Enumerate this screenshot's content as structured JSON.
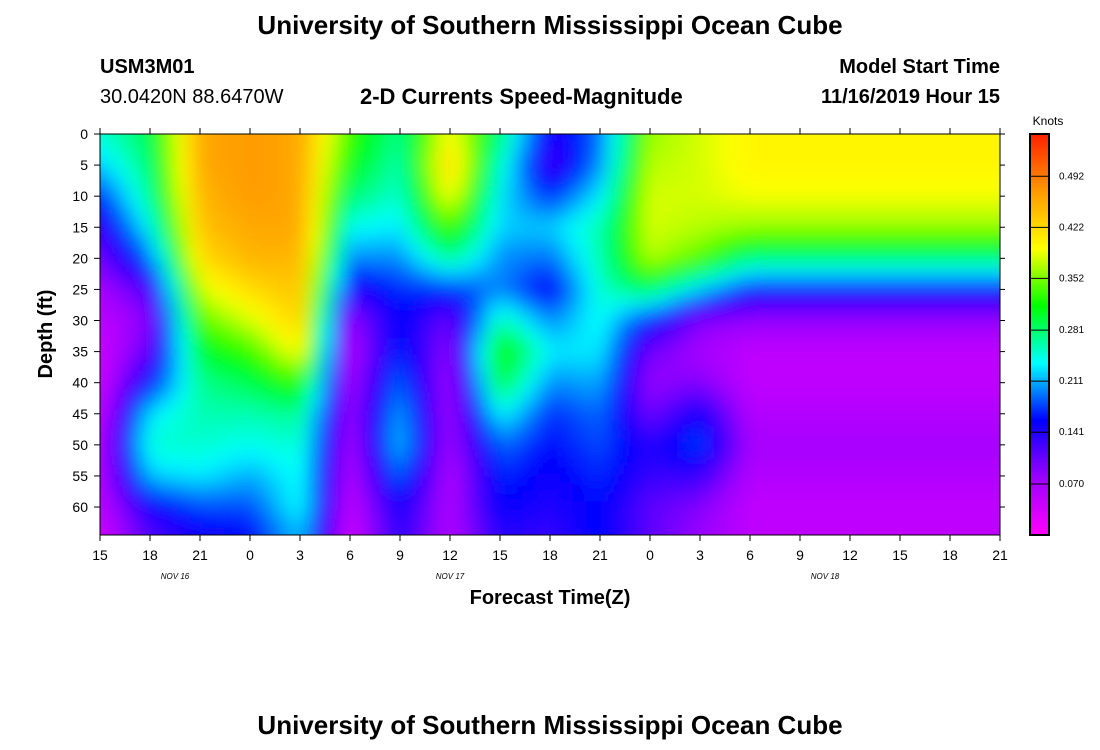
{
  "header": {
    "title": "University of Southern Mississippi Ocean Cube",
    "station_id": "USM3M01",
    "coordinates": "30.0420N 88.6470W",
    "chart_title": "2-D Currents Speed-Magnitude",
    "model_start_label": "Model Start Time",
    "model_start_value": "11/16/2019 Hour 15"
  },
  "footer": {
    "title": "University of Southern Mississippi Ocean Cube"
  },
  "chart_data": {
    "type": "heatmap",
    "title": "2-D Currents Speed-Magnitude",
    "xlabel": "Forecast Time(Z)",
    "ylabel": "Depth (ft)",
    "x_tick_labels": [
      "15",
      "18",
      "21",
      "0",
      "3",
      "6",
      "9",
      "12",
      "15",
      "18",
      "21",
      "0",
      "3",
      "6",
      "9",
      "12",
      "15",
      "18",
      "21"
    ],
    "x_range_hours": [
      0,
      54
    ],
    "x_tick_step_hours": 3,
    "date_labels": [
      {
        "text": "NOV 16",
        "hour": 4.5
      },
      {
        "text": "NOV 17",
        "hour": 21
      },
      {
        "text": "NOV 18",
        "hour": 43.5
      }
    ],
    "y_tick_labels": [
      "0",
      "5",
      "10",
      "15",
      "20",
      "25",
      "30",
      "35",
      "40",
      "45",
      "50",
      "55",
      "60"
    ],
    "y_ticks": [
      0,
      5,
      10,
      15,
      20,
      25,
      30,
      35,
      40,
      45,
      50,
      55,
      60
    ],
    "y_range": [
      0,
      64.5
    ],
    "y_inverted": true,
    "colorbar": {
      "label": "Knots",
      "tick_labels": [
        "0.492",
        "0.422",
        "0.352",
        "0.281",
        "0.211",
        "0.141",
        "0.070"
      ],
      "ticks": [
        0.492,
        0.422,
        0.352,
        0.281,
        0.211,
        0.141,
        0.07
      ],
      "range": [
        0.0,
        0.55
      ],
      "colors": [
        "#ff00ff",
        "#9b00ff",
        "#0000ff",
        "#00ffff",
        "#00ff00",
        "#ffff00",
        "#ff9900",
        "#ff2000"
      ]
    },
    "depth_profile": [
      0,
      5,
      10,
      15,
      20,
      25,
      30,
      35,
      40,
      45,
      50,
      55,
      60,
      64
    ],
    "speed_grid": [
      {
        "hour": 0,
        "values": [
          0.25,
          0.22,
          0.17,
          0.13,
          0.1,
          0.07,
          0.05,
          0.04,
          0.04,
          0.05,
          0.06,
          0.06,
          0.05,
          0.04
        ]
      },
      {
        "hour": 3,
        "values": [
          0.29,
          0.28,
          0.27,
          0.24,
          0.19,
          0.12,
          0.09,
          0.11,
          0.16,
          0.23,
          0.25,
          0.22,
          0.15,
          0.12
        ]
      },
      {
        "hour": 6,
        "values": [
          0.46,
          0.46,
          0.45,
          0.44,
          0.42,
          0.38,
          0.34,
          0.3,
          0.27,
          0.26,
          0.25,
          0.23,
          0.18,
          0.15
        ]
      },
      {
        "hour": 9,
        "values": [
          0.47,
          0.47,
          0.47,
          0.46,
          0.45,
          0.42,
          0.38,
          0.33,
          0.29,
          0.26,
          0.24,
          0.21,
          0.18,
          0.16
        ]
      },
      {
        "hour": 12,
        "values": [
          0.46,
          0.46,
          0.46,
          0.46,
          0.45,
          0.44,
          0.43,
          0.4,
          0.33,
          0.27,
          0.25,
          0.24,
          0.24,
          0.22
        ]
      },
      {
        "hour": 15,
        "values": [
          0.33,
          0.31,
          0.28,
          0.24,
          0.2,
          0.14,
          0.08,
          0.06,
          0.07,
          0.08,
          0.07,
          0.06,
          0.05,
          0.04
        ]
      },
      {
        "hour": 18,
        "values": [
          0.27,
          0.26,
          0.25,
          0.23,
          0.2,
          0.17,
          0.16,
          0.17,
          0.19,
          0.21,
          0.22,
          0.19,
          0.15,
          0.14
        ]
      },
      {
        "hour": 21,
        "values": [
          0.4,
          0.43,
          0.4,
          0.34,
          0.27,
          0.17,
          0.1,
          0.08,
          0.07,
          0.07,
          0.07,
          0.06,
          0.06,
          0.06
        ]
      },
      {
        "hour": 24,
        "values": [
          0.28,
          0.25,
          0.23,
          0.22,
          0.2,
          0.2,
          0.26,
          0.33,
          0.3,
          0.24,
          0.19,
          0.17,
          0.16,
          0.14
        ]
      },
      {
        "hour": 27,
        "values": [
          0.14,
          0.12,
          0.17,
          0.22,
          0.19,
          0.15,
          0.2,
          0.23,
          0.2,
          0.17,
          0.16,
          0.15,
          0.14,
          0.13
        ]
      },
      {
        "hour": 30,
        "values": [
          0.19,
          0.2,
          0.23,
          0.26,
          0.26,
          0.25,
          0.24,
          0.23,
          0.21,
          0.19,
          0.18,
          0.17,
          0.16,
          0.16
        ]
      },
      {
        "hour": 33,
        "values": [
          0.36,
          0.37,
          0.38,
          0.38,
          0.37,
          0.29,
          0.16,
          0.1,
          0.08,
          0.1,
          0.14,
          0.13,
          0.11,
          0.11
        ]
      },
      {
        "hour": 36,
        "values": [
          0.38,
          0.38,
          0.38,
          0.37,
          0.34,
          0.22,
          0.09,
          0.07,
          0.09,
          0.15,
          0.18,
          0.13,
          0.09,
          0.08
        ]
      },
      {
        "hour": 39,
        "values": [
          0.4,
          0.4,
          0.39,
          0.36,
          0.28,
          0.16,
          0.08,
          0.05,
          0.05,
          0.06,
          0.07,
          0.06,
          0.05,
          0.05
        ]
      }
    ]
  }
}
